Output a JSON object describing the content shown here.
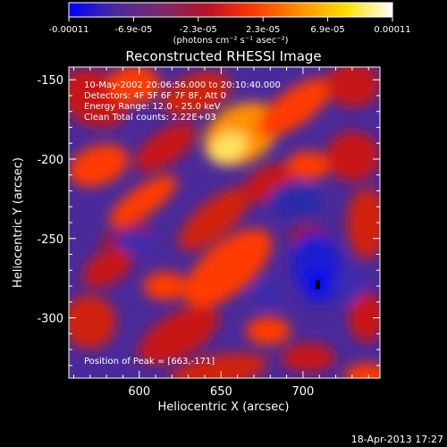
{
  "chart_data": {
    "type": "heatmap",
    "title": "Reconstructed RHESSI Image",
    "xlabel": "Heliocentric X (arcsec)",
    "ylabel": "Heliocentric Y (arcsec)",
    "xlim": [
      557,
      747
    ],
    "ylim": [
      -338,
      -142
    ],
    "xticks": [
      600,
      650,
      700
    ],
    "yticks": [
      -150,
      -200,
      -250,
      -300
    ],
    "colorbar": {
      "ticks": [
        "-0.00011",
        "-6.9e-05",
        "-2.3e-05",
        "2.3e-05",
        "6.9e-05",
        "0.00011"
      ],
      "units": "(photons cm⁻² s⁻¹ asec⁻²)",
      "colors": [
        "#0000ff",
        "#4a2a9a",
        "#7a2a6a",
        "#b8102a",
        "#ff3a00",
        "#ff9000",
        "#ffe000",
        "#ffffff"
      ]
    },
    "annotations": [
      "10-May-2002 20:06:56.000 to 20:10:40.000",
      "Detectors: 4F 5F 6F 7F 8F, Att 0",
      "Energy Range: 12.0 - 25.0 keV",
      "Clean    Total counts: 2.22E+03"
    ],
    "peak_label": "Position of Peak = [663,-171]",
    "peak": [
      663,
      -171
    ],
    "minimum_marker": [
      709,
      -279
    ]
  },
  "timestamp": "18-Apr-2013 17:27"
}
